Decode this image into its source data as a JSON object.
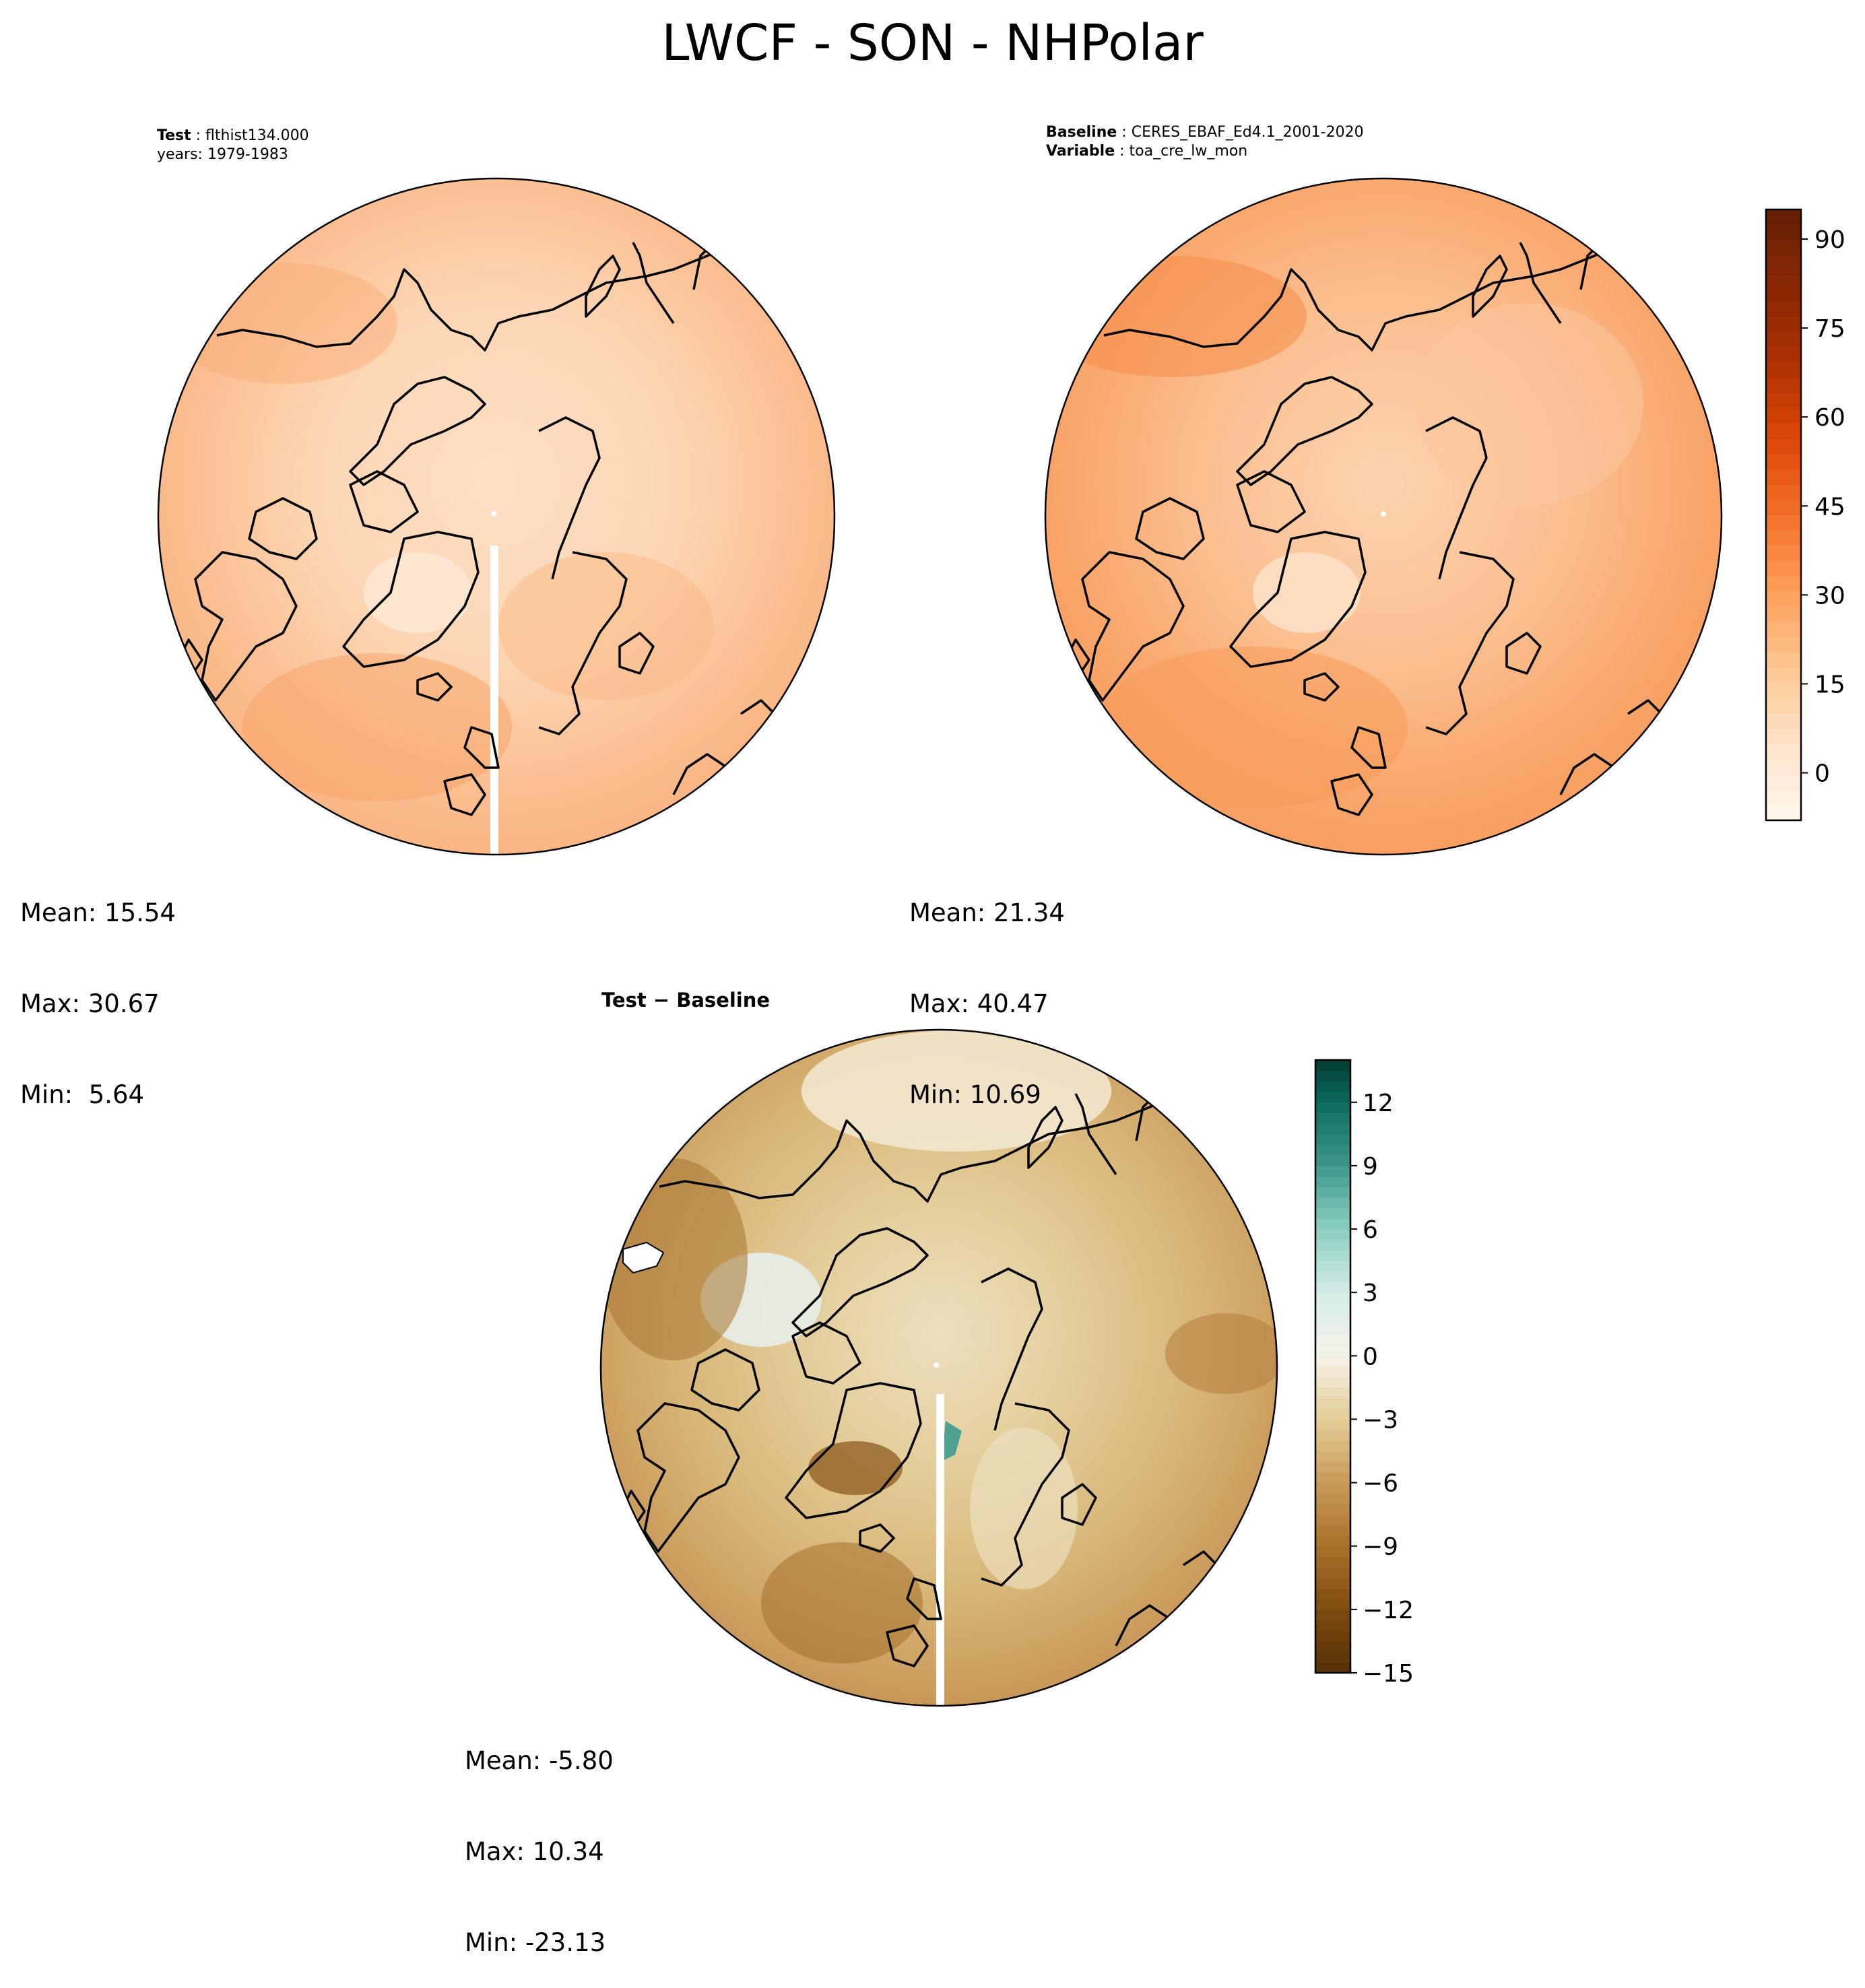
{
  "title": "LWCF - SON - NHPolar",
  "panels": [
    {
      "id": "test",
      "label_key": "Test",
      "label_value": "flthist134.000",
      "line2": "years: 1979-1983",
      "mean": "Mean: 15.54",
      "max": "Max: 30.67",
      "min": "Min:  5.64",
      "field_shade": "#f9c9a0"
    },
    {
      "id": "baseline",
      "label_key": "Baseline",
      "label_value": "CERES_EBAF_Ed4.1_2001-2020",
      "label2_key": "Variable",
      "label2_value": "toa_cre_lw_mon",
      "mean": "Mean: 21.34",
      "max": "Max: 40.47",
      "min": "Min: 10.69",
      "field_shade": "#f7b27c"
    },
    {
      "id": "difference",
      "title": "Test − Baseline",
      "mean": "Mean: -5.80",
      "max": "Max: 10.34",
      "min": "Min: -23.13",
      "field_shade": "#e2c489"
    }
  ],
  "colorbars": {
    "main": {
      "colormap": "Oranges",
      "levels": [
        -10,
        -5,
        0,
        5,
        10,
        15,
        20,
        25,
        30,
        35,
        40,
        45,
        50,
        55,
        60,
        65,
        70,
        75,
        80,
        85,
        90,
        95
      ],
      "ticks": [
        "0",
        "15",
        "30",
        "45",
        "60",
        "75",
        "90"
      ],
      "tick_values": [
        0,
        15,
        30,
        45,
        60,
        75,
        90
      ],
      "colors": [
        "#fff5eb",
        "#feeddc",
        "#fee6cc",
        "#fddbb8",
        "#fdd0a3",
        "#fdc38d",
        "#fdb376",
        "#fda25f",
        "#fd914b",
        "#f87f38",
        "#f16d27",
        "#e85b17",
        "#dd4a0b",
        "#ce3f04",
        "#bc3703",
        "#aa3003",
        "#992b03",
        "#8a2703",
        "#7f2704",
        "#6e2104",
        "#601d04"
      ],
      "range": [
        -8,
        95
      ]
    },
    "diff": {
      "colormap": "BrBG",
      "ticks": [
        "12",
        "9",
        "6",
        "3",
        "0",
        "−3",
        "−6",
        "−9",
        "−12",
        "−15"
      ],
      "tick_values": [
        12,
        9,
        6,
        3,
        0,
        -3,
        -6,
        -9,
        -12,
        -15
      ],
      "range": [
        -15,
        14
      ]
    }
  }
}
